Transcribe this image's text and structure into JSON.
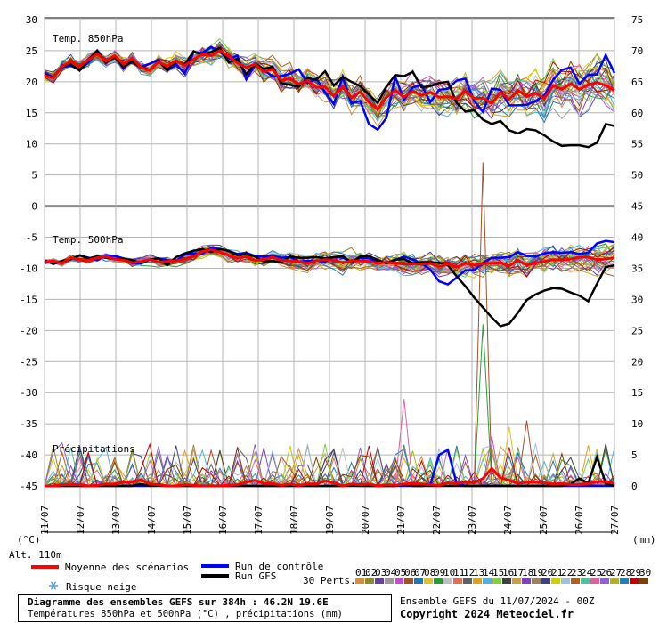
{
  "chart_data": {
    "type": "line",
    "title": "Diagramme des ensembles GEFS sur 384h : 46.2N 19.6E",
    "subtitle": "Températures 850hPa et 500hPa (°C) , précipitations (mm)",
    "left_axis_unit": "(°C)",
    "right_axis_unit": "(mm)",
    "left_ticks": [
      30,
      25,
      20,
      15,
      10,
      5,
      0,
      -5,
      -10,
      -15,
      -20,
      -25,
      -30,
      -35,
      -40,
      -45
    ],
    "right_ticks": [
      75,
      70,
      65,
      60,
      55,
      50,
      45,
      40,
      35,
      30,
      25,
      20,
      15,
      10,
      5,
      0
    ],
    "x_tick_labels": [
      "11/07",
      "12/07",
      "13/07",
      "14/07",
      "15/07",
      "16/07",
      "17/07",
      "18/07",
      "19/07",
      "20/07",
      "21/07",
      "22/07",
      "23/07",
      "24/07",
      "25/07",
      "26/07",
      "27/07"
    ],
    "panels": [
      {
        "name": "Temp. 850hPa"
      },
      {
        "name": "Temp. 500hPa"
      },
      {
        "name": "Précipitations"
      }
    ],
    "series": [
      {
        "name": "Moyenne des scénarios",
        "color": "#ff0000",
        "t850": [
          21,
          20.6,
          22.5,
          23.2,
          22.5,
          23.5,
          24.5,
          23.3,
          24.2,
          22.8,
          23.8,
          22.3,
          21.8,
          23.2,
          22.5,
          23.4,
          22.6,
          23.6,
          24.4,
          24.2,
          25,
          24.1,
          23,
          22.3,
          22.8,
          21.6,
          22,
          20.2,
          20.5,
          19.6,
          20.2,
          19.1,
          19.2,
          17.7,
          19.3,
          17.4,
          18.4,
          16.7,
          15.6,
          17.5,
          18.6,
          17.5,
          18.5,
          17.8,
          18.3,
          17.5,
          17.6,
          17.3,
          18.6,
          17.3,
          17.4,
          16.5,
          18.3,
          17.2,
          18.6,
          17.6,
          18.2,
          17.3,
          19.4,
          18.8,
          19.7,
          18.8,
          19.5,
          19.9,
          19.4,
          18.6
        ],
        "t500": [
          -9,
          -8.8,
          -9.2,
          -8.3,
          -8.6,
          -8.7,
          -8.3,
          -8.1,
          -8.5,
          -8.7,
          -9.1,
          -8.9,
          -8.6,
          -9,
          -8.9,
          -8.8,
          -8.5,
          -8.1,
          -7.3,
          -7,
          -7.4,
          -7.9,
          -8.4,
          -8.1,
          -8.7,
          -8.6,
          -8.2,
          -8.7,
          -8.8,
          -8.9,
          -9.2,
          -8.8,
          -8.6,
          -8.7,
          -9.1,
          -8.8,
          -8.8,
          -8.9,
          -9.2,
          -9,
          -9.2,
          -9.3,
          -9.3,
          -9.3,
          -9.2,
          -9.7,
          -9.3,
          -9.8,
          -9.2,
          -9.5,
          -9.2,
          -9.2,
          -9.1,
          -9.6,
          -8.7,
          -9.5,
          -9.1,
          -8.9,
          -8.6,
          -8.7,
          -8.5,
          -8.2,
          -8.2,
          -8.6,
          -8.5,
          -8.3
        ],
        "precip": [
          0,
          0,
          0.2,
          0.2,
          0.2,
          0,
          0.1,
          0.3,
          0.3,
          0.6,
          0.6,
          1,
          0.3,
          0.2,
          0,
          0,
          0.2,
          0.1,
          0,
          0,
          0,
          0.1,
          0.2,
          0.6,
          0.9,
          0.4,
          0.4,
          0.1,
          0.3,
          0.1,
          0.3,
          0.3,
          0.8,
          0.5,
          0,
          0.3,
          0.2,
          0.3,
          0,
          0.2,
          0.1,
          0.3,
          0.4,
          0.3,
          0.2,
          0.1,
          0.5,
          0.4,
          0.6,
          0.5,
          1.2,
          2.8,
          1.3,
          0.9,
          0.4,
          0.6,
          0.6,
          0.5,
          0.3,
          0.4,
          0.2,
          0.2,
          0.4,
          0.7,
          0.7,
          0.4
        ]
      },
      {
        "name": "Run de contrôle",
        "color": "#0000ff",
        "t850": [
          21.5,
          20.7,
          22.3,
          22.6,
          21.9,
          23.1,
          24.8,
          23,
          24.2,
          22.1,
          23.8,
          22.4,
          22.9,
          23.5,
          21.8,
          22.8,
          21.3,
          24.8,
          24.6,
          25.6,
          24.8,
          23.6,
          24.2,
          20.4,
          22.6,
          21.9,
          20.9,
          20.9,
          21.3,
          22,
          19.8,
          20.5,
          18.3,
          16.4,
          20.8,
          16.5,
          16.9,
          13.2,
          12.3,
          14.2,
          20.8,
          17.1,
          19.1,
          19.5,
          16.7,
          18.7,
          18.9,
          20.2,
          20.5,
          16.9,
          15.2,
          18.9,
          18.7,
          16.2,
          16.2,
          16.3,
          16.9,
          17.8,
          20.3,
          21.9,
          22.3,
          19.7,
          21.1,
          21.2,
          24.3,
          21.4
        ],
        "t500": [
          -9.1,
          -8.8,
          -9.2,
          -8.5,
          -7.9,
          -8.3,
          -8.7,
          -7.9,
          -8,
          -8.4,
          -9.2,
          -9.2,
          -8.6,
          -8.4,
          -8.7,
          -8.8,
          -7.8,
          -7.6,
          -7.7,
          -6.7,
          -6.9,
          -7.2,
          -7.7,
          -7.5,
          -8,
          -8.1,
          -8,
          -8.3,
          -8.2,
          -8.9,
          -8.8,
          -8.8,
          -8.9,
          -8.2,
          -8.3,
          -8.9,
          -8.3,
          -8.4,
          -9,
          -9.1,
          -8.7,
          -8.1,
          -8.6,
          -9.2,
          -10.2,
          -12.1,
          -12.6,
          -11.5,
          -10.3,
          -10.3,
          -9.1,
          -8.3,
          -8.3,
          -8.2,
          -7.4,
          -8,
          -8.1,
          -7.6,
          -7.4,
          -7.5,
          -7.4,
          -7.7,
          -7.5,
          -6,
          -5.6,
          -5.8
        ],
        "precip": [
          0,
          0,
          0,
          0,
          0,
          0,
          0,
          0,
          0,
          0,
          0,
          0,
          0,
          0.3,
          0,
          0,
          0,
          0,
          0,
          0,
          0,
          0,
          0,
          0,
          0,
          0,
          0,
          0,
          0,
          0,
          0,
          0,
          0,
          0,
          0,
          0.3,
          0,
          0,
          0,
          0,
          0,
          0,
          0,
          0,
          0.2,
          5,
          5.8,
          0.4,
          0,
          0,
          0,
          0,
          0,
          0,
          0,
          0,
          0,
          0,
          0,
          0,
          0,
          0,
          0,
          0,
          0,
          0
        ]
      },
      {
        "name": "Run GFS",
        "color": "#000000",
        "t850": [
          21.2,
          20.6,
          22.6,
          22.8,
          21.8,
          23.6,
          25,
          23.1,
          23.9,
          22.4,
          23.2,
          22.4,
          21.9,
          23.3,
          21.9,
          23.3,
          22.8,
          24.9,
          24.3,
          24.8,
          25.4,
          23.1,
          23.7,
          21.2,
          22.9,
          22.1,
          22.4,
          19.8,
          19.5,
          19.2,
          20.6,
          20.3,
          21.7,
          19.4,
          20.8,
          20,
          19.3,
          17.9,
          16.6,
          19.2,
          21.1,
          20.9,
          21.6,
          19.1,
          19.3,
          19.8,
          20,
          16.6,
          15.2,
          15.4,
          13.9,
          13.2,
          13.7,
          12.2,
          11.7,
          12.4,
          12.2,
          11.4,
          10.4,
          9.7,
          9.8,
          9.8,
          9.5,
          10.2,
          13.2,
          12.9
        ],
        "t500": [
          -8.7,
          -9.3,
          -8.8,
          -8.6,
          -7.9,
          -8.4,
          -8.1,
          -8.3,
          -8.5,
          -8.5,
          -8.7,
          -9.1,
          -8.6,
          -8.4,
          -9.5,
          -8.2,
          -7.6,
          -7.2,
          -6.9,
          -7.4,
          -6.9,
          -7.2,
          -7.9,
          -7.7,
          -8.1,
          -8.9,
          -8.8,
          -9,
          -8.1,
          -8.3,
          -8.3,
          -8.2,
          -8.4,
          -8.2,
          -8,
          -9.1,
          -8.1,
          -8,
          -8.7,
          -9.2,
          -8.6,
          -8.5,
          -9.2,
          -9,
          -9,
          -9.1,
          -9.5,
          -11.3,
          -12.9,
          -14.7,
          -16.3,
          -17.9,
          -19.3,
          -18.9,
          -17.1,
          -15.1,
          -14.2,
          -13.6,
          -13.2,
          -13.3,
          -13.9,
          -14.4,
          -15.3,
          -12.5,
          -9.8,
          -9.5
        ],
        "precip": [
          0,
          0,
          0,
          0,
          0,
          0,
          0,
          0,
          0,
          0,
          0,
          0.3,
          0,
          0,
          0,
          0,
          0,
          0,
          0,
          0,
          0,
          0,
          0,
          0,
          0,
          0,
          0,
          0,
          0,
          0,
          0,
          0,
          0,
          0,
          0,
          0,
          0,
          0,
          0,
          0,
          0,
          0.2,
          0,
          0,
          0,
          0,
          0,
          0,
          0,
          0,
          0,
          0,
          0,
          0,
          0,
          0,
          0,
          0,
          0,
          0,
          0.3,
          1.2,
          0.4,
          4.6,
          0.4,
          0
        ]
      }
    ],
    "members": [
      {
        "name": "01",
        "color": "#d98c3a"
      },
      {
        "name": "02",
        "color": "#8c8c2e"
      },
      {
        "name": "03",
        "color": "#6b3fa0"
      },
      {
        "name": "04",
        "color": "#999999"
      },
      {
        "name": "05",
        "color": "#c04ec8"
      },
      {
        "name": "06",
        "color": "#a0522d"
      },
      {
        "name": "07",
        "color": "#1f78b4"
      },
      {
        "name": "08",
        "color": "#e0c030"
      },
      {
        "name": "09",
        "color": "#2b9a3a"
      },
      {
        "name": "10",
        "color": "#bfbfbf"
      },
      {
        "name": "11",
        "color": "#e07050"
      },
      {
        "name": "12",
        "color": "#606060"
      },
      {
        "name": "13",
        "color": "#e0a020"
      },
      {
        "name": "14",
        "color": "#50b0e0"
      },
      {
        "name": "15",
        "color": "#80d040"
      },
      {
        "name": "16",
        "color": "#404040"
      },
      {
        "name": "17",
        "color": "#c8a040"
      },
      {
        "name": "18",
        "color": "#8040c0"
      },
      {
        "name": "19",
        "color": "#a08060"
      },
      {
        "name": "20",
        "color": "#404080"
      },
      {
        "name": "21",
        "color": "#d0d000"
      },
      {
        "name": "22",
        "color": "#a0c0e0"
      },
      {
        "name": "23",
        "color": "#b06020"
      },
      {
        "name": "24",
        "color": "#50c0a0"
      },
      {
        "name": "25",
        "color": "#e060a0"
      },
      {
        "name": "26",
        "color": "#9060d0"
      },
      {
        "name": "27",
        "color": "#b0b020"
      },
      {
        "name": "28",
        "color": "#2080c0"
      },
      {
        "name": "29",
        "color": "#c00000"
      },
      {
        "name": "30",
        "color": "#804000"
      }
    ]
  },
  "labels": {
    "altitude": "Alt. 110m",
    "legend_mean": "Moyenne des scénarios",
    "legend_control": "Run de contrôle",
    "legend_gfs": "Run GFS",
    "legend_snow": "Risque neige",
    "perts": "30 Perts.",
    "ensemble_run": "Ensemble GEFS du 11/07/2024 - 00Z",
    "copyright": "Copyright 2024 Meteociel.fr"
  },
  "colors": {
    "mean": "#ff0000",
    "control": "#0000ff",
    "gfs": "#000000",
    "grid": "#b4b4b4",
    "snow": "#40a0e0"
  }
}
